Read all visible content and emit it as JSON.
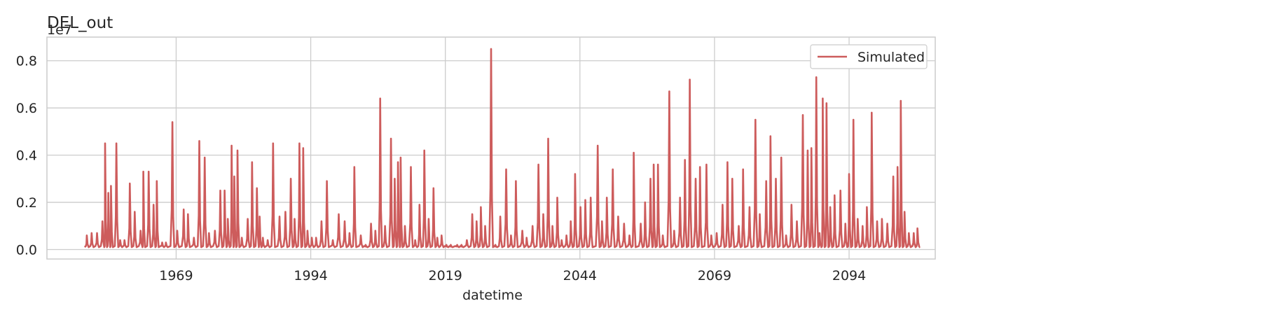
{
  "chart_data": {
    "type": "line",
    "title": "DEL_out",
    "xlabel": "datetime",
    "ylabel": "",
    "y_scale_label": "1e7",
    "xlim": [
      1945,
      2110
    ],
    "ylim": [
      -0.04,
      0.9
    ],
    "x_ticks": [
      1969,
      1994,
      2019,
      2044,
      2069,
      2094
    ],
    "x_tick_labels": [
      "1969",
      "1994",
      "2019",
      "2044",
      "2069",
      "2094"
    ],
    "y_ticks": [
      0.0,
      0.2,
      0.4,
      0.6,
      0.8
    ],
    "y_tick_labels": [
      "0.0",
      "0.2",
      "0.4",
      "0.6",
      "0.8"
    ],
    "grid": true,
    "legend_position": "top-right",
    "x_range": [
      1952,
      2107
    ],
    "baseline": 0.01,
    "series": [
      {
        "name": "Simulated",
        "color": "#cd5c5c",
        "peaks": [
          [
            1952.4,
            0.06
          ],
          [
            1953.3,
            0.07
          ],
          [
            1954.3,
            0.07
          ],
          [
            1955.3,
            0.12
          ],
          [
            1955.8,
            0.45
          ],
          [
            1956.4,
            0.24
          ],
          [
            1956.9,
            0.27
          ],
          [
            1957.9,
            0.45
          ],
          [
            1958.6,
            0.04
          ],
          [
            1959.4,
            0.04
          ],
          [
            1960.4,
            0.28
          ],
          [
            1961.3,
            0.16
          ],
          [
            1962.4,
            0.08
          ],
          [
            1962.9,
            0.33
          ],
          [
            1963.9,
            0.33
          ],
          [
            1964.8,
            0.19
          ],
          [
            1965.4,
            0.29
          ],
          [
            1966.4,
            0.03
          ],
          [
            1967.1,
            0.03
          ],
          [
            1968.3,
            0.54
          ],
          [
            1969.2,
            0.08
          ],
          [
            1970.4,
            0.17
          ],
          [
            1971.2,
            0.15
          ],
          [
            1972.3,
            0.05
          ],
          [
            1973.3,
            0.46
          ],
          [
            1974.3,
            0.39
          ],
          [
            1975.1,
            0.07
          ],
          [
            1976.2,
            0.08
          ],
          [
            1977.2,
            0.25
          ],
          [
            1978.0,
            0.25
          ],
          [
            1978.6,
            0.13
          ],
          [
            1979.3,
            0.44
          ],
          [
            1979.8,
            0.31
          ],
          [
            1980.4,
            0.42
          ],
          [
            1981.2,
            0.05
          ],
          [
            1982.3,
            0.13
          ],
          [
            1983.1,
            0.37
          ],
          [
            1984.0,
            0.26
          ],
          [
            1984.5,
            0.14
          ],
          [
            1985.1,
            0.05
          ],
          [
            1986.0,
            0.04
          ],
          [
            1987.0,
            0.45
          ],
          [
            1988.2,
            0.14
          ],
          [
            1989.3,
            0.16
          ],
          [
            1990.3,
            0.3
          ],
          [
            1991.0,
            0.13
          ],
          [
            1991.9,
            0.45
          ],
          [
            1992.6,
            0.43
          ],
          [
            1993.4,
            0.08
          ],
          [
            1994.2,
            0.05
          ],
          [
            1995.0,
            0.05
          ],
          [
            1996.0,
            0.12
          ],
          [
            1997.0,
            0.29
          ],
          [
            1998.1,
            0.04
          ],
          [
            1999.2,
            0.15
          ],
          [
            2000.3,
            0.12
          ],
          [
            2001.2,
            0.07
          ],
          [
            2002.1,
            0.35
          ],
          [
            2003.3,
            0.06
          ],
          [
            2004.2,
            0.02
          ],
          [
            2005.2,
            0.11
          ],
          [
            2006.0,
            0.08
          ],
          [
            2006.9,
            0.64
          ],
          [
            2007.8,
            0.1
          ],
          [
            2008.9,
            0.47
          ],
          [
            2009.6,
            0.3
          ],
          [
            2010.2,
            0.37
          ],
          [
            2010.7,
            0.39
          ],
          [
            2011.5,
            0.1
          ],
          [
            2012.6,
            0.35
          ],
          [
            2013.4,
            0.04
          ],
          [
            2014.2,
            0.19
          ],
          [
            2015.1,
            0.42
          ],
          [
            2015.9,
            0.13
          ],
          [
            2016.8,
            0.26
          ],
          [
            2017.5,
            0.05
          ],
          [
            2018.3,
            0.06
          ],
          [
            2019.2,
            0.02
          ],
          [
            2020.0,
            0.02
          ],
          [
            2021.2,
            0.02
          ],
          [
            2022.0,
            0.02
          ],
          [
            2023.0,
            0.04
          ],
          [
            2024.0,
            0.15
          ],
          [
            2024.8,
            0.12
          ],
          [
            2025.6,
            0.18
          ],
          [
            2026.4,
            0.1
          ],
          [
            2027.5,
            0.85
          ],
          [
            2028.3,
            0.02
          ],
          [
            2029.2,
            0.14
          ],
          [
            2030.3,
            0.34
          ],
          [
            2031.2,
            0.06
          ],
          [
            2032.1,
            0.29
          ],
          [
            2033.3,
            0.08
          ],
          [
            2034.1,
            0.05
          ],
          [
            2035.2,
            0.1
          ],
          [
            2036.3,
            0.36
          ],
          [
            2037.2,
            0.15
          ],
          [
            2038.1,
            0.47
          ],
          [
            2038.9,
            0.1
          ],
          [
            2039.8,
            0.22
          ],
          [
            2040.6,
            0.04
          ],
          [
            2041.5,
            0.06
          ],
          [
            2042.3,
            0.12
          ],
          [
            2043.1,
            0.32
          ],
          [
            2044.1,
            0.18
          ],
          [
            2045.0,
            0.21
          ],
          [
            2046.0,
            0.22
          ],
          [
            2047.3,
            0.44
          ],
          [
            2048.1,
            0.12
          ],
          [
            2049.0,
            0.22
          ],
          [
            2050.1,
            0.34
          ],
          [
            2051.1,
            0.14
          ],
          [
            2052.2,
            0.11
          ],
          [
            2053.2,
            0.06
          ],
          [
            2054.0,
            0.41
          ],
          [
            2055.3,
            0.11
          ],
          [
            2056.1,
            0.2
          ],
          [
            2057.1,
            0.3
          ],
          [
            2057.7,
            0.36
          ],
          [
            2058.5,
            0.36
          ],
          [
            2059.4,
            0.06
          ],
          [
            2060.6,
            0.67
          ],
          [
            2061.5,
            0.08
          ],
          [
            2062.6,
            0.22
          ],
          [
            2063.5,
            0.38
          ],
          [
            2064.4,
            0.72
          ],
          [
            2065.5,
            0.3
          ],
          [
            2066.3,
            0.35
          ],
          [
            2067.5,
            0.36
          ],
          [
            2068.4,
            0.06
          ],
          [
            2069.4,
            0.07
          ],
          [
            2070.5,
            0.19
          ],
          [
            2071.4,
            0.37
          ],
          [
            2072.3,
            0.3
          ],
          [
            2073.5,
            0.1
          ],
          [
            2074.3,
            0.34
          ],
          [
            2075.5,
            0.18
          ],
          [
            2076.6,
            0.55
          ],
          [
            2077.4,
            0.15
          ],
          [
            2078.6,
            0.29
          ],
          [
            2079.4,
            0.48
          ],
          [
            2080.4,
            0.3
          ],
          [
            2081.4,
            0.39
          ],
          [
            2082.3,
            0.06
          ],
          [
            2083.3,
            0.19
          ],
          [
            2084.3,
            0.12
          ],
          [
            2085.4,
            0.57
          ],
          [
            2086.3,
            0.42
          ],
          [
            2087.0,
            0.43
          ],
          [
            2087.9,
            0.73
          ],
          [
            2088.5,
            0.07
          ],
          [
            2089.1,
            0.64
          ],
          [
            2089.8,
            0.62
          ],
          [
            2090.5,
            0.18
          ],
          [
            2091.3,
            0.23
          ],
          [
            2092.4,
            0.25
          ],
          [
            2093.3,
            0.11
          ],
          [
            2094.0,
            0.32
          ],
          [
            2094.8,
            0.55
          ],
          [
            2095.6,
            0.13
          ],
          [
            2096.5,
            0.1
          ],
          [
            2097.3,
            0.18
          ],
          [
            2098.2,
            0.58
          ],
          [
            2099.2,
            0.12
          ],
          [
            2100.1,
            0.13
          ],
          [
            2101.1,
            0.11
          ],
          [
            2102.2,
            0.31
          ],
          [
            2103.0,
            0.35
          ],
          [
            2103.6,
            0.63
          ],
          [
            2104.3,
            0.16
          ],
          [
            2105.1,
            0.07
          ],
          [
            2106.0,
            0.07
          ],
          [
            2106.7,
            0.09
          ]
        ]
      }
    ]
  }
}
